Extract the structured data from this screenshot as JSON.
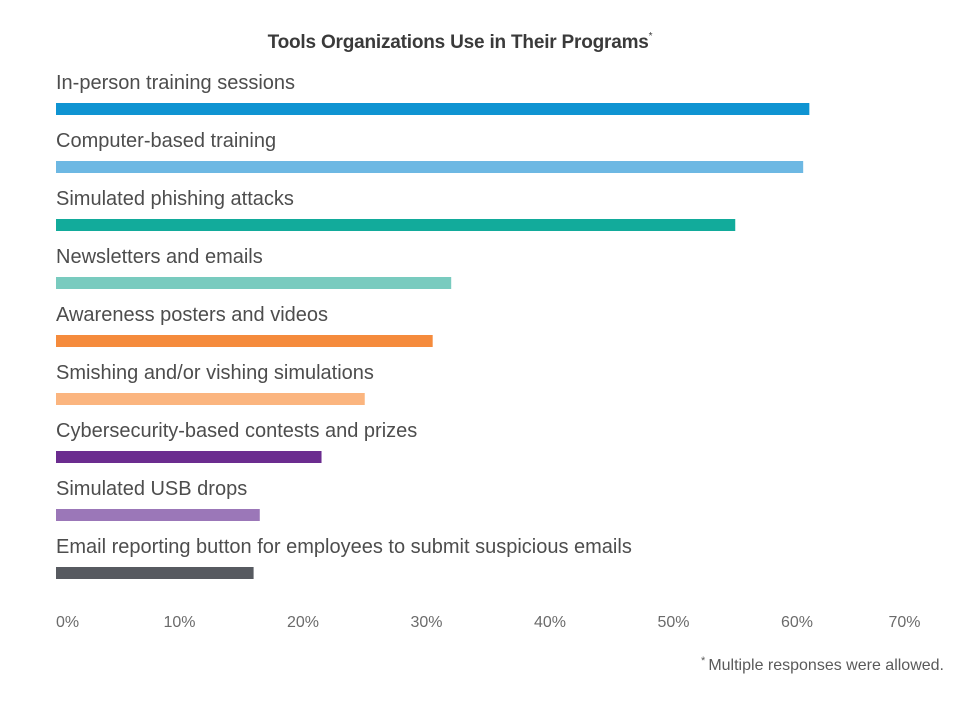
{
  "chart_data": {
    "type": "bar",
    "orientation": "horizontal",
    "title": "Tools Organizations Use in Their Programs",
    "title_mark": "*",
    "categories": [
      "In-person training sessions",
      "Computer-based training",
      "Simulated phishing attacks",
      "Newsletters and emails",
      "Awareness posters and videos",
      "Smishing and/or vishing simulations",
      "Cybersecurity-based contests and prizes",
      "Simulated USB drops",
      "Email reporting button for employees to submit suspicious emails"
    ],
    "values": [
      61,
      60.5,
      55,
      32,
      30.5,
      25,
      21.5,
      16.5,
      16
    ],
    "colors": [
      "#0f94d2",
      "#6db8e3",
      "#12ab9b",
      "#79cbbf",
      "#f58b3c",
      "#fbb57f",
      "#6b2c8f",
      "#9b77b8",
      "#575a60"
    ],
    "x_ticks": [
      "0%",
      "10%",
      "20%",
      "30%",
      "40%",
      "50%",
      "60%",
      "70%"
    ],
    "xlim": [
      0,
      70
    ],
    "grid": false,
    "legend": "none",
    "footnote_mark": "*",
    "footnote": "Multiple responses were allowed."
  }
}
